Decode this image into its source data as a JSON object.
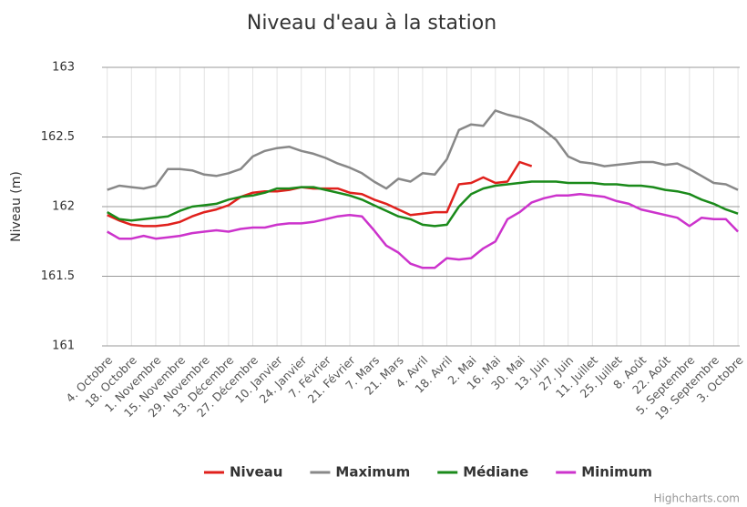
{
  "chart_data": {
    "type": "line",
    "title": "Niveau d'eau à la station",
    "y_label": "Niveau (m)",
    "credits": "Highcharts.com",
    "x": [
      0,
      7,
      14,
      21,
      28,
      35,
      42,
      49,
      56,
      63,
      70,
      77,
      84,
      91,
      98,
      105,
      112,
      119,
      126,
      133,
      140,
      147,
      154,
      161,
      168,
      175,
      182,
      189,
      196,
      203,
      210,
      217,
      224,
      231,
      238,
      245,
      252,
      259,
      266,
      273,
      280,
      287,
      294,
      301,
      308,
      315,
      322,
      329,
      336,
      343,
      350,
      357,
      364
    ],
    "xlim": [
      -3,
      365
    ],
    "xticks": [
      {
        "value": 0,
        "label": "4. Octobre"
      },
      {
        "value": 14,
        "label": "18. Octobre"
      },
      {
        "value": 28,
        "label": "1. Novembre"
      },
      {
        "value": 42,
        "label": "15. Novembre"
      },
      {
        "value": 56,
        "label": "29. Novembre"
      },
      {
        "value": 70,
        "label": "13. Décembre"
      },
      {
        "value": 84,
        "label": "27. Décembre"
      },
      {
        "value": 98,
        "label": "10. Janvier"
      },
      {
        "value": 112,
        "label": "24. Janvier"
      },
      {
        "value": 126,
        "label": "7. Février"
      },
      {
        "value": 140,
        "label": "21. Février"
      },
      {
        "value": 154,
        "label": "7. Mars"
      },
      {
        "value": 168,
        "label": "21. Mars"
      },
      {
        "value": 182,
        "label": "4. Avril"
      },
      {
        "value": 196,
        "label": "18. Avril"
      },
      {
        "value": 210,
        "label": "2. Mai"
      },
      {
        "value": 224,
        "label": "16. Mai"
      },
      {
        "value": 238,
        "label": "30. Mai"
      },
      {
        "value": 252,
        "label": "13. Juin"
      },
      {
        "value": 266,
        "label": "27. Juin"
      },
      {
        "value": 280,
        "label": "11. Juillet"
      },
      {
        "value": 294,
        "label": "25. Juillet"
      },
      {
        "value": 308,
        "label": "8. Août"
      },
      {
        "value": 322,
        "label": "22. Août"
      },
      {
        "value": 336,
        "label": "5. Septembre"
      },
      {
        "value": 350,
        "label": "19. Septembre"
      },
      {
        "value": 364,
        "label": "3. Octobre"
      }
    ],
    "ylim": [
      161,
      163
    ],
    "yticks": [
      161,
      161.5,
      162,
      162.5,
      163
    ],
    "grid": true,
    "legend": "bottom",
    "series": [
      {
        "name": "Niveau",
        "color": "#e0201c",
        "values": [
          161.94,
          161.9,
          161.87,
          161.86,
          161.86,
          161.87,
          161.89,
          161.93,
          161.96,
          161.98,
          162.01,
          162.07,
          162.1,
          162.11,
          162.11,
          162.12,
          162.14,
          162.13,
          162.13,
          162.13,
          162.1,
          162.09,
          162.05,
          162.02,
          161.98,
          161.94,
          161.95,
          161.96,
          161.96,
          162.16,
          162.17,
          162.21,
          162.17,
          162.18,
          162.32,
          162.29,
          null,
          null,
          null,
          null,
          null,
          null,
          null,
          null,
          null,
          null,
          null,
          null,
          null,
          null,
          null,
          null,
          null
        ]
      },
      {
        "name": "Maximum",
        "color": "#888888",
        "values": [
          162.12,
          162.15,
          162.14,
          162.13,
          162.15,
          162.27,
          162.27,
          162.26,
          162.23,
          162.22,
          162.24,
          162.27,
          162.36,
          162.4,
          162.42,
          162.43,
          162.4,
          162.38,
          162.35,
          162.31,
          162.28,
          162.24,
          162.18,
          162.13,
          162.2,
          162.18,
          162.24,
          162.23,
          162.34,
          162.55,
          162.59,
          162.58,
          162.69,
          162.66,
          162.64,
          162.61,
          162.55,
          162.48,
          162.36,
          162.32,
          162.31,
          162.29,
          162.3,
          162.31,
          162.32,
          162.32,
          162.3,
          162.31,
          162.27,
          162.22,
          162.17,
          162.16,
          162.12
        ]
      },
      {
        "name": "Médiane",
        "color": "#1a8a1a",
        "values": [
          161.96,
          161.91,
          161.9,
          161.91,
          161.92,
          161.93,
          161.97,
          162.0,
          162.01,
          162.02,
          162.05,
          162.07,
          162.08,
          162.1,
          162.13,
          162.13,
          162.14,
          162.14,
          162.12,
          162.1,
          162.08,
          162.05,
          162.01,
          161.97,
          161.93,
          161.91,
          161.87,
          161.86,
          161.87,
          162.0,
          162.09,
          162.13,
          162.15,
          162.16,
          162.17,
          162.18,
          162.18,
          162.18,
          162.17,
          162.17,
          162.17,
          162.16,
          162.16,
          162.15,
          162.15,
          162.14,
          162.12,
          162.11,
          162.09,
          162.05,
          162.02,
          161.98,
          161.95
        ]
      },
      {
        "name": "Minimum",
        "color": "#cc33cc",
        "values": [
          161.82,
          161.77,
          161.77,
          161.79,
          161.77,
          161.78,
          161.79,
          161.81,
          161.82,
          161.83,
          161.82,
          161.84,
          161.85,
          161.85,
          161.87,
          161.88,
          161.88,
          161.89,
          161.91,
          161.93,
          161.94,
          161.93,
          161.83,
          161.72,
          161.67,
          161.59,
          161.56,
          161.56,
          161.63,
          161.62,
          161.63,
          161.7,
          161.75,
          161.91,
          161.96,
          162.03,
          162.06,
          162.08,
          162.08,
          162.09,
          162.08,
          162.07,
          162.04,
          162.02,
          161.98,
          161.96,
          161.94,
          161.92,
          161.86,
          161.92,
          161.91,
          161.91,
          161.82
        ]
      }
    ]
  }
}
